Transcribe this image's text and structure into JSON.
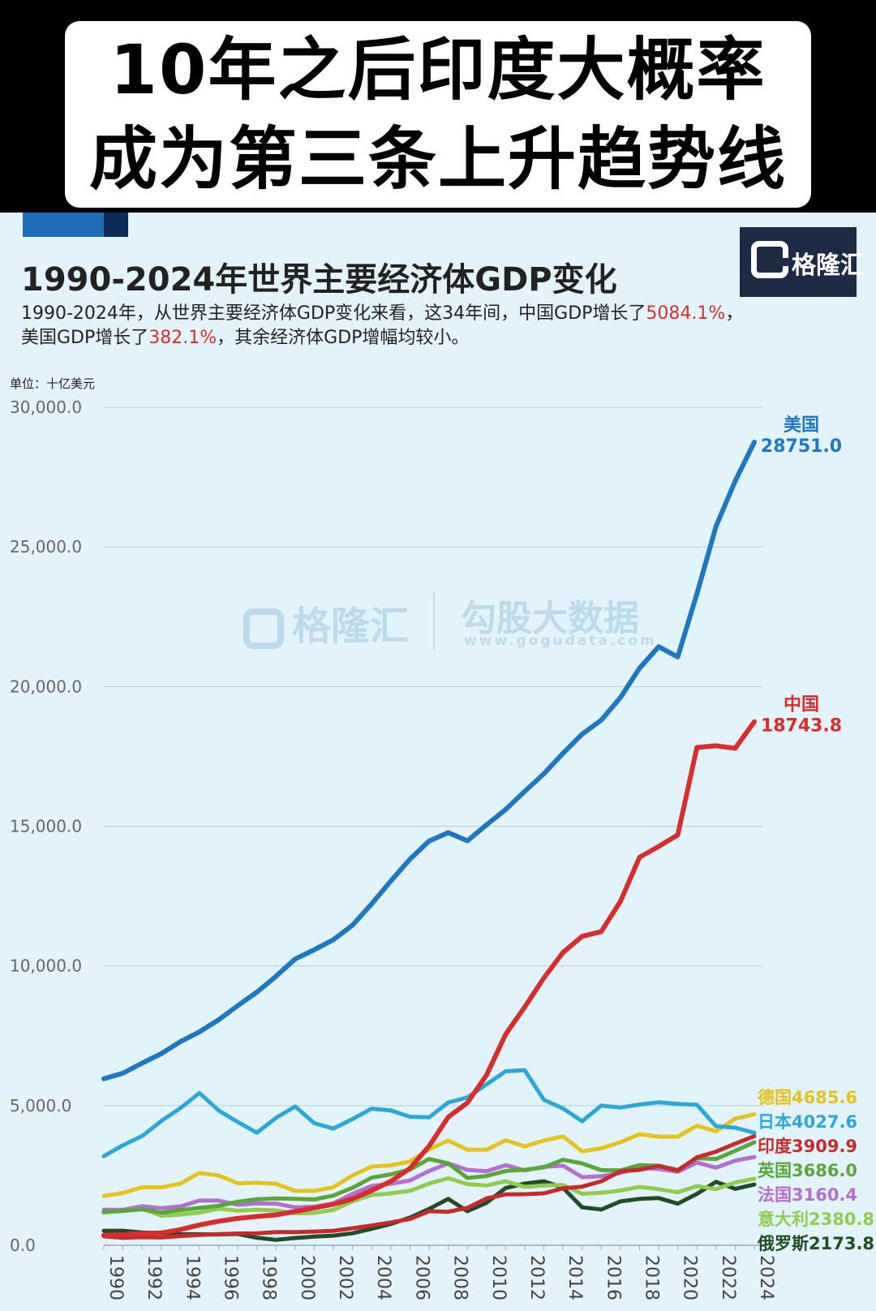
{
  "headline": {
    "line1": "10年之后印度大概率",
    "line2": "成为第三条上升趋势线"
  },
  "logo": {
    "icon": "geelong-g-icon",
    "text": "格隆汇"
  },
  "watermark": {
    "brand": "格隆汇",
    "right": "勾股大数据",
    "url": "www.gogudata.com"
  },
  "description": {
    "line1_prefix": "1990-2024年，从世界主要经济体GDP变化来看，这34年间，中国GDP增长了",
    "line1_value": "5084.1%",
    "line1_suffix": "，",
    "line2_prefix": "美国GDP增长了",
    "line2_value": "382.1%",
    "line2_suffix": "，其余经济体GDP增幅均较小。"
  },
  "unit_label": "单位：十亿美元",
  "colors": {
    "accent": "#1f6db5",
    "highlight": "#d62e2e"
  },
  "chart_data": {
    "type": "line",
    "title": "1990-2024年世界主要经济体GDP变化",
    "xlabel": "",
    "ylabel": "",
    "ylim": [
      0,
      30000
    ],
    "yticks": [
      "0.0",
      "5,000.0",
      "10,000.0",
      "15,000.0",
      "20,000.0",
      "25,000.0",
      "30,000.0"
    ],
    "grid": true,
    "x": [
      1990,
      1991,
      1992,
      1993,
      1994,
      1995,
      1996,
      1997,
      1998,
      1999,
      2000,
      2001,
      2002,
      2003,
      2004,
      2005,
      2006,
      2007,
      2008,
      2009,
      2010,
      2011,
      2012,
      2013,
      2014,
      2015,
      2016,
      2017,
      2018,
      2019,
      2020,
      2021,
      2022,
      2023,
      2024
    ],
    "xticks": [
      "1990",
      "1992",
      "1994",
      "1996",
      "1998",
      "2000",
      "2002",
      "2004",
      "2006",
      "2008",
      "2010",
      "2012",
      "2014",
      "2016",
      "2018",
      "2020",
      "2022",
      "2024"
    ],
    "series": [
      {
        "name": "美国",
        "end_value": "28751.0",
        "color": "#1f77c4",
        "values": [
          5960,
          6160,
          6520,
          6860,
          7290,
          7640,
          8070,
          8580,
          9060,
          9630,
          10250,
          10580,
          10940,
          11460,
          12220,
          13040,
          13820,
          14470,
          14770,
          14480,
          15050,
          15600,
          16250,
          16880,
          17610,
          18300,
          18800,
          19610,
          20660,
          21430,
          21060,
          23320,
          25740,
          27360,
          28751
        ]
      },
      {
        "name": "中国",
        "end_value": "18743.8",
        "color": "#d62e2e",
        "values": [
          360,
          380,
          420,
          440,
          560,
          730,
          860,
          960,
          1030,
          1090,
          1210,
          1340,
          1470,
          1660,
          1960,
          2290,
          2750,
          3550,
          4590,
          5100,
          6090,
          7550,
          8530,
          9570,
          10480,
          11060,
          11230,
          12310,
          13890,
          14280,
          14690,
          17820,
          17880,
          17790,
          18744
        ]
      },
      {
        "name": "日本",
        "end_value": "4027.6",
        "color": "#2ba7d8",
        "values": [
          3190,
          3580,
          3910,
          4450,
          4910,
          5450,
          4830,
          4410,
          4030,
          4560,
          4970,
          4370,
          4180,
          4520,
          4890,
          4830,
          4600,
          4580,
          5110,
          5290,
          5760,
          6230,
          6270,
          5210,
          4900,
          4440,
          5000,
          4930,
          5040,
          5120,
          5060,
          5030,
          4260,
          4210,
          4028
        ]
      },
      {
        "name": "德国",
        "end_value": "4685.6",
        "color": "#e6c21c",
        "values": [
          1770,
          1870,
          2080,
          2070,
          2210,
          2590,
          2500,
          2220,
          2240,
          2200,
          1950,
          1950,
          2080,
          2500,
          2820,
          2860,
          3000,
          3430,
          3750,
          3420,
          3420,
          3760,
          3540,
          3750,
          3900,
          3360,
          3470,
          3690,
          3980,
          3890,
          3890,
          4280,
          4080,
          4530,
          4686
        ]
      },
      {
        "name": "印度",
        "end_value": "3909.9",
        "color": "#c62a2a",
        "values": [
          320,
          270,
          290,
          280,
          330,
          370,
          400,
          420,
          430,
          470,
          470,
          490,
          520,
          610,
          710,
          820,
          940,
          1220,
          1200,
          1340,
          1680,
          1820,
          1830,
          1860,
          2040,
          2100,
          2290,
          2650,
          2700,
          2840,
          2670,
          3150,
          3350,
          3640,
          3910
        ]
      },
      {
        "name": "英国",
        "end_value": "3686.0",
        "color": "#5aa63a",
        "values": [
          1190,
          1230,
          1290,
          1170,
          1260,
          1340,
          1410,
          1560,
          1650,
          1680,
          1660,
          1640,
          1780,
          2060,
          2420,
          2540,
          2710,
          3090,
          2930,
          2410,
          2480,
          2660,
          2700,
          2790,
          3060,
          2930,
          2690,
          2680,
          2870,
          2850,
          2700,
          3120,
          3090,
          3380,
          3686
        ]
      },
      {
        "name": "法国",
        "end_value": "3160.4",
        "color": "#b46fd0",
        "values": [
          1270,
          1270,
          1400,
          1330,
          1390,
          1600,
          1600,
          1450,
          1500,
          1490,
          1360,
          1380,
          1500,
          1840,
          2120,
          2200,
          2320,
          2660,
          2930,
          2700,
          2650,
          2870,
          2680,
          2810,
          2850,
          2440,
          2470,
          2590,
          2790,
          2730,
          2630,
          2960,
          2780,
          3030,
          3160
        ]
      },
      {
        "name": "意大利",
        "end_value": "2380.8",
        "color": "#8fcc50",
        "values": [
          1180,
          1230,
          1320,
          1060,
          1100,
          1170,
          1310,
          1240,
          1270,
          1250,
          1140,
          1160,
          1270,
          1570,
          1800,
          1860,
          1950,
          2210,
          2400,
          2190,
          2140,
          2290,
          2090,
          2140,
          2160,
          1840,
          1880,
          1960,
          2090,
          2010,
          1900,
          2120,
          2010,
          2250,
          2381
        ]
      },
      {
        "name": "俄罗斯",
        "end_value": "2173.8",
        "color": "#1e4d26",
        "values": [
          520,
          520,
          460,
          435,
          395,
          395,
          390,
          405,
          270,
          195,
          260,
          310,
          345,
          430,
          590,
          765,
          990,
          1300,
          1660,
          1220,
          1520,
          2050,
          2210,
          2290,
          2060,
          1360,
          1280,
          1570,
          1660,
          1690,
          1490,
          1840,
          2270,
          2020,
          2174
        ]
      }
    ]
  }
}
